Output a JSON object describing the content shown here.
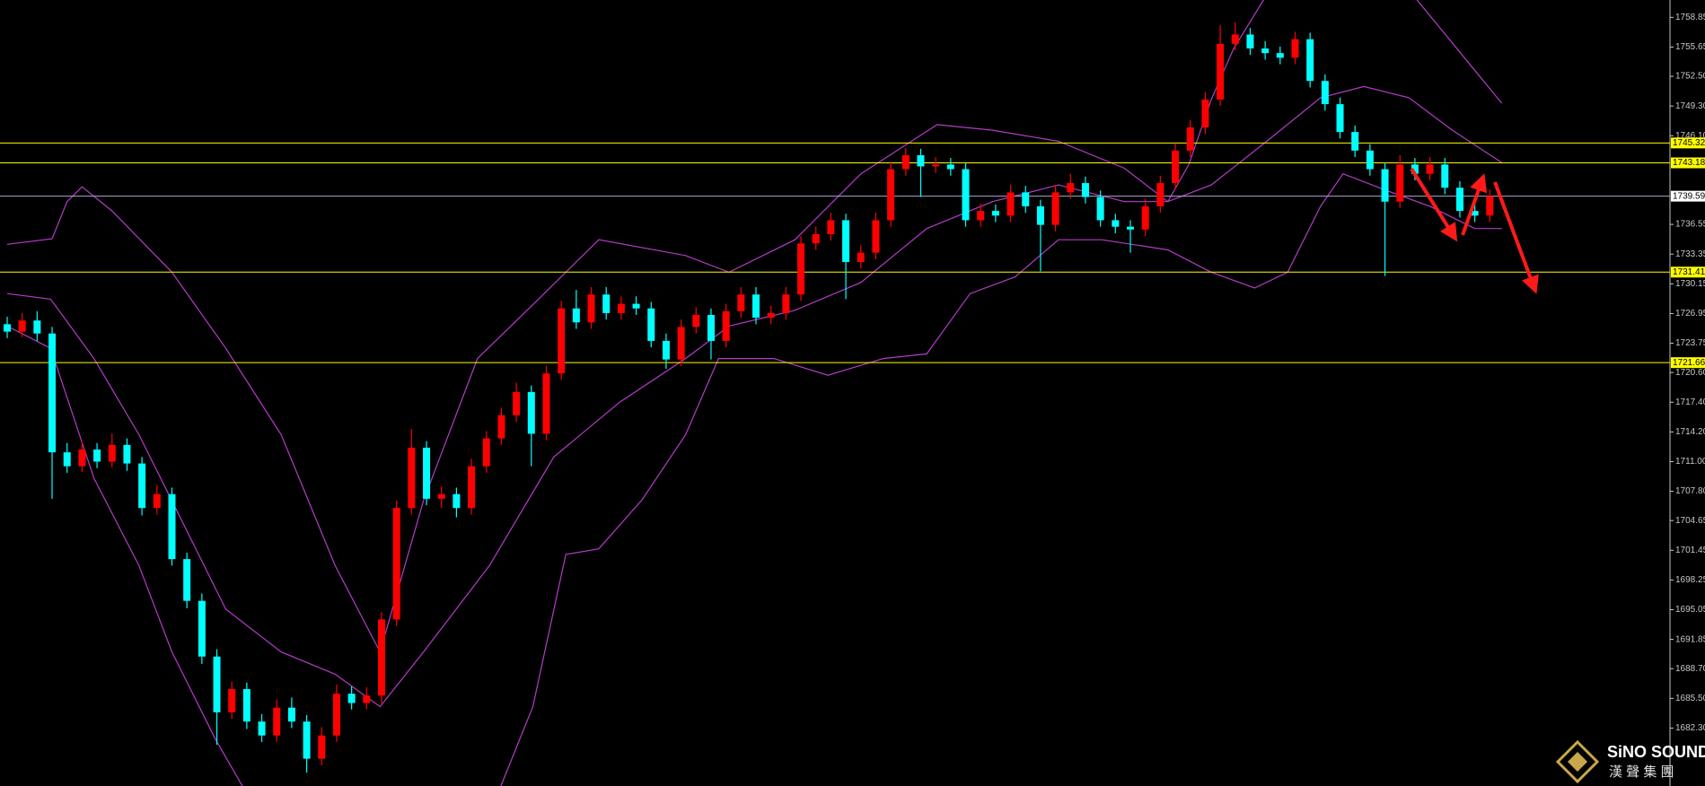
{
  "chart_data": {
    "type": "candlestick",
    "open": [
      1725.8,
      1725.0,
      1726.2,
      1724.8,
      1712.0,
      1710.5,
      1712.3,
      1711.0,
      1712.8,
      1710.8,
      1706.0,
      1707.5,
      1700.5,
      1696.0,
      1690.0,
      1684.0,
      1686.5,
      1683.0,
      1681.5,
      1684.5,
      1683.0,
      1679.0,
      1681.5,
      1686.0,
      1685.0,
      1685.8,
      1694.0,
      1706.0,
      1712.5,
      1707.0,
      1707.5,
      1706.0,
      1710.5,
      1713.5,
      1716.0,
      1718.5,
      1714.0,
      1720.5,
      1727.5,
      1726.0,
      1729.0,
      1727.0,
      1728.0,
      1727.5,
      1724.0,
      1722.0,
      1725.5,
      1726.8,
      1724.0,
      1727.2,
      1729.0,
      1726.5,
      1727.0,
      1729.0,
      1734.5,
      1735.5,
      1737.0,
      1732.5,
      1733.5,
      1737.0,
      1742.5,
      1744.0,
      1742.8,
      1743.0,
      1742.5,
      1737.0,
      1738.0,
      1737.5,
      1740.0,
      1738.5,
      1736.5,
      1740.0,
      1741.0,
      1739.5,
      1737.0,
      1736.3,
      1736.0,
      1738.5,
      1741.0,
      1744.5,
      1747.0,
      1750.0,
      1756.0,
      1757.0,
      1755.5,
      1755.0,
      1754.5,
      1756.5,
      1752.0,
      1749.5,
      1746.5,
      1744.5,
      1742.5,
      1739.0,
      1743.0,
      1742.0,
      1743.0,
      1740.5,
      1738.0,
      1737.5
    ],
    "high": [
      1726.6,
      1727.0,
      1727.2,
      1725.5,
      1713.0,
      1713.2,
      1713.0,
      1714.0,
      1713.5,
      1711.5,
      1708.5,
      1708.2,
      1701.2,
      1696.8,
      1690.8,
      1687.3,
      1687.2,
      1683.8,
      1685.4,
      1685.6,
      1683.7,
      1682.4,
      1687.0,
      1686.8,
      1686.7,
      1694.8,
      1706.8,
      1714.5,
      1713.2,
      1708.3,
      1708.2,
      1711.3,
      1714.3,
      1716.8,
      1719.5,
      1719.2,
      1721.3,
      1728.3,
      1729.5,
      1729.8,
      1729.8,
      1728.8,
      1728.8,
      1728.2,
      1724.8,
      1726.3,
      1727.6,
      1727.5,
      1728.0,
      1729.8,
      1729.8,
      1727.8,
      1729.8,
      1735.3,
      1736.3,
      1737.8,
      1737.7,
      1734.3,
      1737.8,
      1743.3,
      1744.8,
      1744.7,
      1743.8,
      1743.7,
      1743.2,
      1738.8,
      1738.7,
      1740.8,
      1740.7,
      1739.2,
      1740.8,
      1742.0,
      1741.7,
      1740.2,
      1737.7,
      1737.0,
      1739.3,
      1741.8,
      1745.3,
      1747.8,
      1750.8,
      1758.0,
      1758.3,
      1757.7,
      1756.3,
      1755.7,
      1757.3,
      1757.2,
      1752.7,
      1750.2,
      1747.2,
      1745.2,
      1743.2,
      1744.0,
      1743.7,
      1743.8,
      1743.7,
      1741.2,
      1738.7,
      1740.3
    ],
    "low": [
      1724.3,
      1724.4,
      1724.0,
      1707.0,
      1709.8,
      1709.9,
      1710.3,
      1710.4,
      1710.0,
      1705.2,
      1705.3,
      1699.8,
      1695.2,
      1689.2,
      1680.5,
      1683.3,
      1682.2,
      1680.8,
      1680.8,
      1682.3,
      1677.5,
      1678.3,
      1680.8,
      1684.3,
      1684.3,
      1685.0,
      1693.3,
      1705.3,
      1706.3,
      1706.0,
      1705.0,
      1705.3,
      1709.8,
      1712.8,
      1715.3,
      1710.5,
      1713.3,
      1719.8,
      1725.3,
      1725.3,
      1726.3,
      1726.3,
      1726.8,
      1723.3,
      1721.0,
      1721.3,
      1724.8,
      1722.0,
      1723.3,
      1726.5,
      1725.8,
      1725.8,
      1726.3,
      1728.3,
      1733.8,
      1734.8,
      1728.5,
      1731.8,
      1732.8,
      1736.3,
      1741.8,
      1739.5,
      1742.1,
      1741.8,
      1736.3,
      1736.3,
      1736.8,
      1736.8,
      1737.8,
      1731.5,
      1735.8,
      1739.3,
      1738.8,
      1736.3,
      1735.6,
      1733.5,
      1735.3,
      1737.8,
      1740.3,
      1743.8,
      1746.3,
      1749.3,
      1755.3,
      1754.8,
      1754.3,
      1753.8,
      1753.8,
      1751.3,
      1748.8,
      1745.8,
      1743.8,
      1741.8,
      1731.0,
      1738.3,
      1741.3,
      1741.3,
      1739.8,
      1737.3,
      1736.8,
      1736.8
    ],
    "close": [
      1725.0,
      1726.2,
      1724.8,
      1712.0,
      1710.5,
      1712.3,
      1711.0,
      1712.8,
      1710.8,
      1706.0,
      1707.5,
      1700.5,
      1696.0,
      1690.0,
      1684.0,
      1686.5,
      1683.0,
      1681.5,
      1684.5,
      1683.0,
      1679.0,
      1681.5,
      1686.0,
      1685.0,
      1685.8,
      1694.0,
      1706.0,
      1712.5,
      1707.0,
      1707.5,
      1706.0,
      1710.5,
      1713.5,
      1716.0,
      1718.5,
      1714.0,
      1720.5,
      1727.5,
      1726.0,
      1729.0,
      1727.0,
      1728.0,
      1727.5,
      1724.0,
      1722.0,
      1725.5,
      1726.8,
      1724.0,
      1727.2,
      1729.0,
      1726.5,
      1727.0,
      1729.0,
      1734.5,
      1735.5,
      1737.0,
      1732.5,
      1733.5,
      1737.0,
      1742.5,
      1744.0,
      1742.8,
      1743.0,
      1742.5,
      1737.0,
      1738.0,
      1737.5,
      1740.0,
      1738.5,
      1736.5,
      1740.0,
      1741.0,
      1739.5,
      1737.0,
      1736.3,
      1736.0,
      1738.5,
      1741.0,
      1744.5,
      1747.0,
      1750.0,
      1756.0,
      1757.0,
      1755.5,
      1755.0,
      1754.5,
      1756.5,
      1752.0,
      1749.5,
      1746.5,
      1744.5,
      1742.5,
      1739.0,
      1743.0,
      1742.0,
      1743.0,
      1740.5,
      1738.0,
      1737.5,
      1739.59
    ],
    "up_color": "#ff0000",
    "down_color": "#00ffff",
    "bands": [
      {
        "x": [
          0,
          3,
          4,
          5,
          7,
          11,
          14.6,
          18.3,
          21.9,
          24.9,
          27.8,
          31.4,
          35.1,
          39.5,
          45.3,
          48.2,
          52.6,
          57,
          62.1,
          65.8,
          70.2,
          74.6,
          77.5,
          78.9,
          80.4,
          81.9,
          84,
          89,
          94,
          99.8
        ],
        "values": [
          1734.4,
          1735,
          1739,
          1740.6,
          1738,
          1731.4,
          1723.2,
          1713.9,
          1699.8,
          1690.5,
          1706.8,
          1722.1,
          1727.9,
          1734.9,
          1733.2,
          1731.4,
          1734.9,
          1742,
          1747.3,
          1746.7,
          1745.5,
          1742.6,
          1739,
          1743,
          1750,
          1755.5,
          1761,
          1763,
          1761,
          1749.6
        ]
      },
      {
        "x": [
          0,
          2.9,
          5.8,
          8.8,
          11.7,
          14.6,
          18.3,
          21.9,
          24.9,
          27.8,
          32.2,
          36.5,
          40.9,
          45.3,
          48.2,
          52.6,
          57,
          61.4,
          65.8,
          70.2,
          74.6,
          77.5,
          80.4,
          84.1,
          87.7,
          90.6,
          93.6,
          96.5,
          99.8
        ],
        "values": [
          1729.1,
          1728.5,
          1722.1,
          1713.9,
          1704.5,
          1695.1,
          1690.5,
          1688.1,
          1684.6,
          1690.5,
          1699.8,
          1711.5,
          1717.4,
          1722.1,
          1725.6,
          1727.3,
          1730.3,
          1736.1,
          1739,
          1740.8,
          1739,
          1739,
          1740.8,
          1745.5,
          1750.2,
          1751.4,
          1750.2,
          1746.7,
          1743.2
        ]
      },
      {
        "x": [
          0,
          2.9,
          5.8,
          8.8,
          11,
          13.9,
          16.8,
          23.4,
          25.6,
          32.2,
          35.1,
          37.3,
          39.5,
          42.4,
          45.3,
          47.5,
          51.2,
          54.8,
          58.5,
          61.4,
          64.3,
          67.3,
          70.2,
          73.1,
          77.5,
          80.4,
          83.3,
          85.5,
          87.7,
          89.2,
          92.1,
          95,
          98,
          99.8
        ],
        "values": [
          1725.6,
          1723.2,
          1709.2,
          1699.8,
          1690.5,
          1681.1,
          1673,
          1674.7,
          1673,
          1673,
          1684.6,
          1701,
          1701.6,
          1706.9,
          1713.9,
          1722.1,
          1722.1,
          1720.3,
          1722.1,
          1722.6,
          1729.1,
          1730.9,
          1734.9,
          1734.9,
          1733.8,
          1731.4,
          1729.7,
          1731.4,
          1738.5,
          1742,
          1740.2,
          1738.5,
          1736.1,
          1736.1
        ]
      }
    ],
    "band_color": "#b43cc8",
    "levels": [
      1745.32,
      1743.18,
      1731.41,
      1721.66
    ],
    "level_color": "#ffff00",
    "last_price": 1739.59,
    "last_price_color": "#a8a8d8",
    "ylim": [
      1676.06,
      1760.72
    ],
    "yticks": [
      1758.85,
      1755.65,
      {
        "value": 1752.5,
        "label": "1752.50"
      },
      {
        "value": 1749.3,
        "label": "1749.30"
      },
      {
        "value": 1746.1,
        "label": "1746.10"
      },
      1736.55,
      1733.35,
      1730.15,
      1726.95,
      1723.75,
      {
        "value": 1720.6,
        "label": "1720.60"
      },
      {
        "value": 1717.4,
        "label": "1717.40"
      },
      {
        "value": 1714.2,
        "label": "1714.20"
      },
      {
        "value": 1711,
        "label": "1711.00"
      },
      {
        "value": 1707.8,
        "label": "1707.80"
      },
      1704.65,
      1701.45,
      1698.25,
      1695.05,
      1691.85,
      {
        "value": 1688.7,
        "label": "1688.70"
      },
      {
        "value": 1685.5,
        "label": "1685.50"
      },
      {
        "value": 1682.3,
        "label": "1682.30"
      }
    ],
    "watermark": {
      "name": "SiNO SOUND",
      "name_cn": "漢 聲 集 團"
    }
  }
}
